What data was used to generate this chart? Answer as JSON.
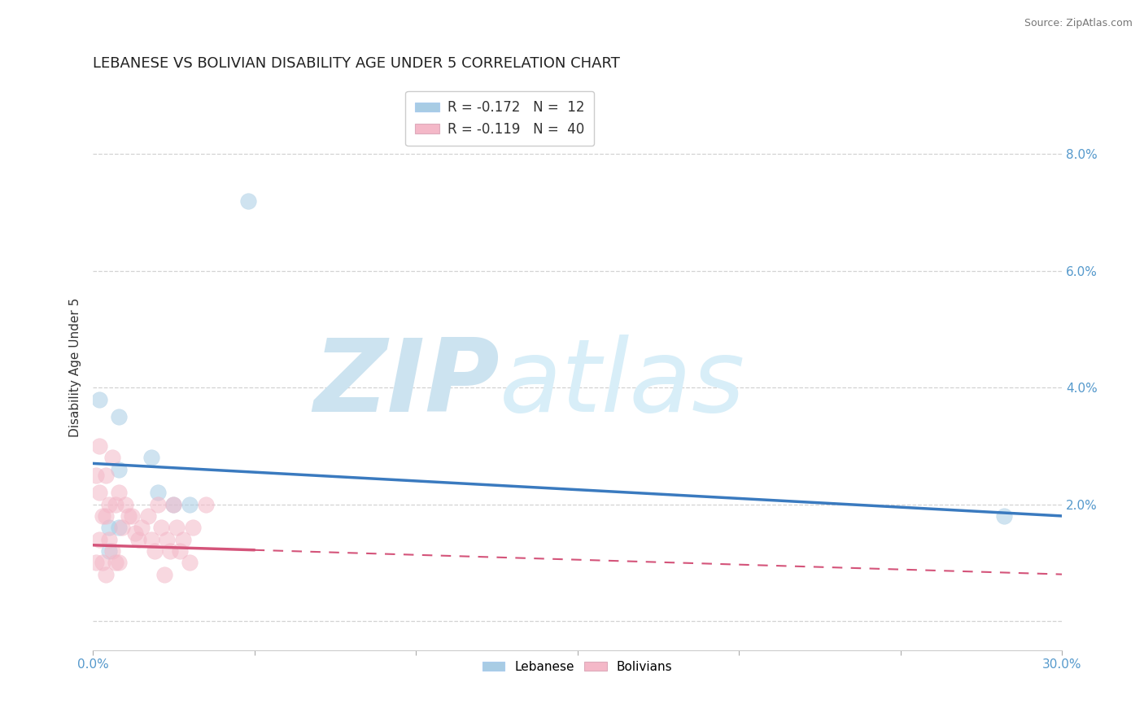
{
  "title": "LEBANESE VS BOLIVIAN DISABILITY AGE UNDER 5 CORRELATION CHART",
  "source_text": "Source: ZipAtlas.com",
  "ylabel": "Disability Age Under 5",
  "xlim": [
    0.0,
    0.3
  ],
  "ylim": [
    -0.005,
    0.092
  ],
  "xticks": [
    0.0,
    0.05,
    0.1,
    0.15,
    0.2,
    0.25,
    0.3
  ],
  "xticklabels": [
    "0.0%",
    "",
    "",
    "",
    "",
    "",
    "30.0%"
  ],
  "yticks": [
    0.0,
    0.02,
    0.04,
    0.06,
    0.08
  ],
  "yticklabels": [
    "",
    "2.0%",
    "4.0%",
    "6.0%",
    "8.0%"
  ],
  "legend_r1": "R = -0.172",
  "legend_n1": "N =  12",
  "legend_r2": "R = -0.119",
  "legend_n2": "N =  40",
  "blue_color": "#a8cce4",
  "pink_color": "#f4b8c8",
  "blue_line_color": "#3a7abf",
  "pink_line_color": "#d4547a",
  "grid_color": "#c8c8c8",
  "watermark_zip": "ZIP",
  "watermark_atlas": "atlas",
  "watermark_color": "#cce3f0",
  "background_color": "#ffffff",
  "tick_label_color": "#5599cc",
  "lebanese_x": [
    0.048,
    0.002,
    0.008,
    0.018,
    0.008,
    0.02,
    0.025,
    0.03,
    0.008,
    0.005,
    0.005,
    0.282
  ],
  "lebanese_y": [
    0.072,
    0.038,
    0.035,
    0.028,
    0.026,
    0.022,
    0.02,
    0.02,
    0.016,
    0.016,
    0.012,
    0.018
  ],
  "bolivian_x": [
    0.001,
    0.001,
    0.002,
    0.002,
    0.002,
    0.003,
    0.003,
    0.004,
    0.004,
    0.004,
    0.005,
    0.005,
    0.006,
    0.006,
    0.007,
    0.007,
    0.008,
    0.008,
    0.009,
    0.01,
    0.011,
    0.012,
    0.013,
    0.014,
    0.015,
    0.017,
    0.018,
    0.019,
    0.02,
    0.021,
    0.022,
    0.023,
    0.024,
    0.025,
    0.026,
    0.027,
    0.028,
    0.03,
    0.031,
    0.035
  ],
  "bolivian_y": [
    0.025,
    0.01,
    0.03,
    0.022,
    0.014,
    0.018,
    0.01,
    0.025,
    0.018,
    0.008,
    0.02,
    0.014,
    0.028,
    0.012,
    0.02,
    0.01,
    0.022,
    0.01,
    0.016,
    0.02,
    0.018,
    0.018,
    0.015,
    0.014,
    0.016,
    0.018,
    0.014,
    0.012,
    0.02,
    0.016,
    0.008,
    0.014,
    0.012,
    0.02,
    0.016,
    0.012,
    0.014,
    0.01,
    0.016,
    0.02
  ],
  "title_fontsize": 13,
  "axis_fontsize": 11,
  "tick_fontsize": 11,
  "marker_size": 200,
  "marker_alpha": 0.55,
  "blue_line_start_y": 0.027,
  "blue_line_end_y": 0.018,
  "pink_line_start_y": 0.013,
  "pink_line_end_y": 0.008
}
